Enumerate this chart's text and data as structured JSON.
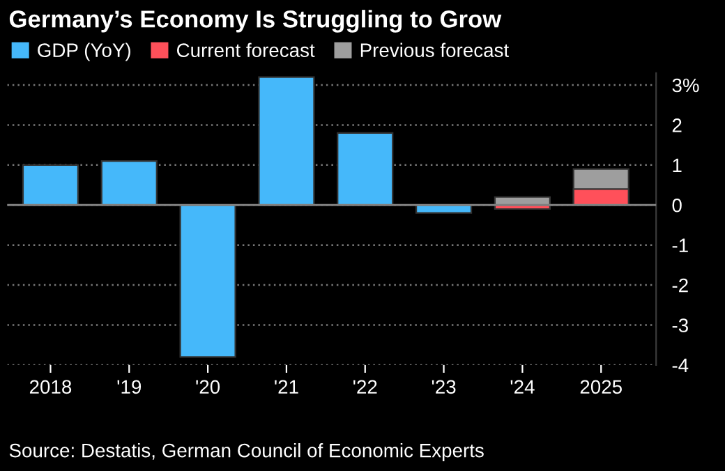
{
  "chart_data": {
    "type": "bar",
    "title": "Germany’s Economy Is Struggling to Grow",
    "categories": [
      "2018",
      "'19",
      "'20",
      "'21",
      "'22",
      "'23",
      "'24",
      "2025"
    ],
    "series": [
      {
        "name": "GDP (YoY)",
        "color": "#45b8fa",
        "values": [
          1.0,
          1.1,
          -3.8,
          3.2,
          1.8,
          -0.2,
          null,
          null
        ]
      },
      {
        "name": "Current forecast",
        "color": "#ff505a",
        "values": [
          null,
          null,
          null,
          null,
          null,
          null,
          -0.1,
          0.4
        ]
      },
      {
        "name": "Previous forecast",
        "color": "#9e9e9e",
        "values": [
          null,
          null,
          null,
          null,
          null,
          null,
          0.2,
          0.9
        ]
      }
    ],
    "ylim": [
      -4,
      3.3
    ],
    "yticks": [
      {
        "value": 3,
        "label": "3%"
      },
      2,
      1,
      0,
      -1,
      -2,
      -3,
      -4
    ],
    "grid": "y",
    "legend": "top left",
    "ref_lines": [
      {
        "axis": "y",
        "value": 0,
        "color": "#808080",
        "line_style": "solid"
      }
    ],
    "annotations": [
      "Source: Destatis, German Council of Economic Experts"
    ]
  }
}
